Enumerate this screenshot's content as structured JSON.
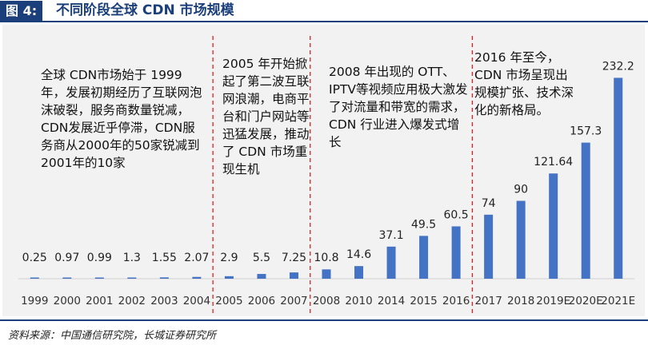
{
  "header": {
    "figure_label": "图 4:",
    "title": "不同阶段全球 CDN 市场规模"
  },
  "eras": [
    {
      "text": "全球 CDN市场始于 1999年，发展初期经历了互联网泡沫破裂，服务商数量锐减，CDN发展近乎停滞，CDN服务商从2000年的50家锐减到2001年的10家"
    },
    {
      "text": "2005 年开始掀起了第二波互联网浪潮，电商平台和门户网站等迅猛发展，推动了 CDN 市场重现生机"
    },
    {
      "text": "2008 年出现的 OTT、IPTV等视频应用极大激发了对流量和带宽的需求，CDN 行业进入爆发式增长"
    },
    {
      "text": "2016 年至今，CDN 市场呈现出规模扩张、技术深化的新格局。"
    }
  ],
  "chart_data": {
    "type": "bar",
    "categories": [
      "1999",
      "2000",
      "2001",
      "2002",
      "2003",
      "2004",
      "2005",
      "2006",
      "2007",
      "2008",
      "2010",
      "2014",
      "2015",
      "2016",
      "2017",
      "2018",
      "2019E",
      "2020E",
      "2021E"
    ],
    "values": [
      0.25,
      0.97,
      0.99,
      1.3,
      1.55,
      2.07,
      2.9,
      5.5,
      7.25,
      10.8,
      14.6,
      37.1,
      49.5,
      60.5,
      74,
      90,
      121.64,
      157.3,
      232.2
    ],
    "value_labels": [
      "0.25",
      "0.97",
      "0.99",
      "1.3",
      "1.55",
      "2.07",
      "2.9",
      "5.5",
      "7.25",
      "10.8",
      "14.6",
      "37.1",
      "49.5",
      "60.5",
      "74",
      "90",
      "121.64",
      "157.3",
      "232.2"
    ],
    "title": "",
    "xlabel": "",
    "ylabel": "",
    "ylim": [
      0,
      240
    ],
    "grid": false,
    "legend": "none",
    "bar_color": "#4472c4",
    "divider_color": "#e02020",
    "era_dividers_after": [
      "2004",
      "2007",
      "2016"
    ]
  },
  "footer": {
    "source": "资料来源：中国通信研究院，长城证券研究所"
  },
  "colors": {
    "brand": "#1a3f7a",
    "panel_bg": "#f2f2f2"
  }
}
